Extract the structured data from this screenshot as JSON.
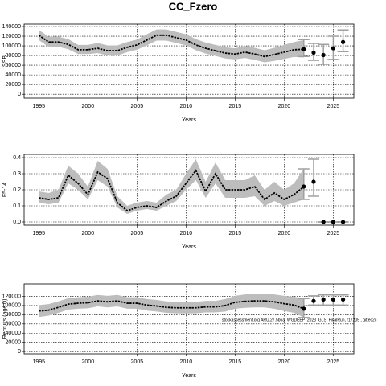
{
  "title": "CC_Fzero",
  "chart_data": [
    {
      "type": "line",
      "ylabel": "SSB",
      "xlabel": "Years",
      "xlim": [
        1993.5,
        2027.1
      ],
      "xticks": [
        1995,
        2000,
        2005,
        2010,
        2015,
        2020,
        2025
      ],
      "ylim": [
        -8000,
        145000
      ],
      "yticks": [
        0,
        20000,
        40000,
        60000,
        80000,
        100000,
        120000,
        140000
      ],
      "grid": true,
      "line_color": "#000000",
      "band_color": "#bdbdbd",
      "bar_color": "#a0a0a0",
      "x": [
        1995,
        1996,
        1997,
        1998,
        1999,
        2000,
        2001,
        2002,
        2003,
        2004,
        2005,
        2006,
        2007,
        2008,
        2009,
        2010,
        2011,
        2012,
        2013,
        2014,
        2015,
        2016,
        2017,
        2018,
        2019,
        2020,
        2021,
        2022
      ],
      "values": [
        122000,
        108000,
        108000,
        103000,
        92000,
        92000,
        95000,
        90000,
        90000,
        97000,
        102000,
        112000,
        122000,
        122000,
        117000,
        112000,
        102000,
        95000,
        90000,
        85000,
        83000,
        87000,
        83000,
        78000,
        82000,
        87000,
        92000,
        93000
      ],
      "lower": [
        112000,
        98000,
        98000,
        93000,
        83000,
        83000,
        85000,
        80000,
        80000,
        87000,
        92000,
        101000,
        111000,
        111000,
        106000,
        101000,
        91000,
        84000,
        79000,
        74000,
        72000,
        75000,
        71000,
        66000,
        69000,
        73000,
        77000,
        76000
      ],
      "upper": [
        133000,
        119000,
        119000,
        114000,
        102000,
        102000,
        106000,
        101000,
        101000,
        108000,
        113000,
        124000,
        134000,
        134000,
        129000,
        124000,
        114000,
        107000,
        102000,
        97000,
        95000,
        100000,
        96000,
        91000,
        96000,
        102000,
        108000,
        112000
      ],
      "forecast": {
        "x": [
          2022,
          2023,
          2024,
          2025,
          2026
        ],
        "values": [
          93000,
          86000,
          81000,
          95000,
          108000
        ],
        "lower": [
          78000,
          70000,
          62000,
          72000,
          88000
        ],
        "upper": [
          113000,
          105000,
          103000,
          120000,
          133000
        ]
      }
    },
    {
      "type": "line",
      "ylabel": "F5-14",
      "xlabel": "Years",
      "xlim": [
        1993.5,
        2027.1
      ],
      "xticks": [
        1995,
        2000,
        2005,
        2010,
        2015,
        2020,
        2025
      ],
      "ylim": [
        -0.02,
        0.42
      ],
      "yticks": [
        {
          "value": 0,
          "label": "0.0"
        },
        0.1,
        0.2,
        0.3,
        0.4
      ],
      "grid": true,
      "line_color": "#000000",
      "band_color": "#bdbdbd",
      "bar_color": "#a0a0a0",
      "x": [
        1995,
        1996,
        1997,
        1998,
        1999,
        2000,
        2001,
        2002,
        2003,
        2004,
        2005,
        2006,
        2007,
        2008,
        2009,
        2010,
        2011,
        2012,
        2013,
        2014,
        2015,
        2016,
        2017,
        2018,
        2019,
        2020,
        2021,
        2022
      ],
      "values": [
        0.15,
        0.14,
        0.15,
        0.29,
        0.24,
        0.17,
        0.31,
        0.27,
        0.12,
        0.07,
        0.09,
        0.1,
        0.09,
        0.13,
        0.16,
        0.24,
        0.32,
        0.19,
        0.3,
        0.2,
        0.2,
        0.2,
        0.22,
        0.14,
        0.18,
        0.14,
        0.17,
        0.22
      ],
      "lower": [
        0.12,
        0.11,
        0.12,
        0.24,
        0.2,
        0.14,
        0.26,
        0.22,
        0.09,
        0.05,
        0.07,
        0.08,
        0.07,
        0.1,
        0.13,
        0.2,
        0.26,
        0.15,
        0.24,
        0.15,
        0.15,
        0.15,
        0.16,
        0.1,
        0.13,
        0.1,
        0.12,
        0.14
      ],
      "upper": [
        0.19,
        0.18,
        0.2,
        0.35,
        0.3,
        0.22,
        0.38,
        0.33,
        0.16,
        0.1,
        0.12,
        0.13,
        0.12,
        0.17,
        0.2,
        0.3,
        0.39,
        0.25,
        0.37,
        0.26,
        0.26,
        0.26,
        0.29,
        0.2,
        0.25,
        0.2,
        0.24,
        0.33
      ],
      "forecast": {
        "x": [
          2022,
          2023,
          2024,
          2025,
          2026
        ],
        "values": [
          0.22,
          0.25,
          0,
          0,
          0
        ],
        "lower": [
          0.14,
          0.16,
          0,
          0,
          0
        ],
        "upper": [
          0.33,
          0.39,
          0,
          0,
          0
        ]
      }
    },
    {
      "type": "line",
      "ylabel": "Recruits (age 0)",
      "xlabel": "Years",
      "annotation": "stockassessment.org ARU.27.5b6a_WGDEEP_2023_GLS_FinalRun, r17205 , git:ec2c",
      "xlim": [
        1993.5,
        2027.1
      ],
      "xticks": [
        1995,
        2000,
        2005,
        2010,
        2015,
        2020,
        2025
      ],
      "ylim": [
        -5000,
        147000
      ],
      "yticks": [
        0,
        20000,
        40000,
        60000,
        80000,
        100000,
        120000
      ],
      "grid": true,
      "line_color": "#000000",
      "band_color": "#bdbdbd",
      "bar_color": "#a0a0a0",
      "x": [
        1995,
        1996,
        1997,
        1998,
        1999,
        2000,
        2001,
        2002,
        2003,
        2004,
        2005,
        2006,
        2007,
        2008,
        2009,
        2010,
        2011,
        2012,
        2013,
        2014,
        2015,
        2016,
        2017,
        2018,
        2019,
        2020,
        2021,
        2022
      ],
      "values": [
        88000,
        90000,
        96000,
        103000,
        105000,
        106000,
        110000,
        108000,
        110000,
        105000,
        105000,
        101000,
        99000,
        96000,
        95000,
        95000,
        95000,
        97000,
        97000,
        100000,
        107000,
        109000,
        110000,
        110000,
        108000,
        104000,
        101000,
        93000
      ],
      "lower": [
        75000,
        78000,
        84000,
        91000,
        93000,
        94000,
        98000,
        96000,
        98000,
        93000,
        93000,
        89000,
        87000,
        84000,
        83000,
        83000,
        83000,
        85000,
        85000,
        87000,
        93000,
        95000,
        96000,
        96000,
        93000,
        88000,
        84000,
        74000
      ],
      "upper": [
        101000,
        103000,
        109000,
        116000,
        118000,
        119000,
        123000,
        121000,
        123000,
        118000,
        118000,
        114000,
        112000,
        109000,
        108000,
        108000,
        108000,
        110000,
        110000,
        114000,
        121000,
        124000,
        125000,
        125000,
        124000,
        121000,
        119000,
        115000
      ],
      "forecast": {
        "x": [
          2022,
          2023,
          2024,
          2025,
          2026
        ],
        "values": [
          93000,
          110000,
          113000,
          113000,
          113000
        ],
        "lower": [
          74000,
          101000,
          101000,
          101000,
          101000
        ],
        "upper": [
          115000,
          121000,
          123000,
          123000,
          123000
        ]
      }
    }
  ]
}
